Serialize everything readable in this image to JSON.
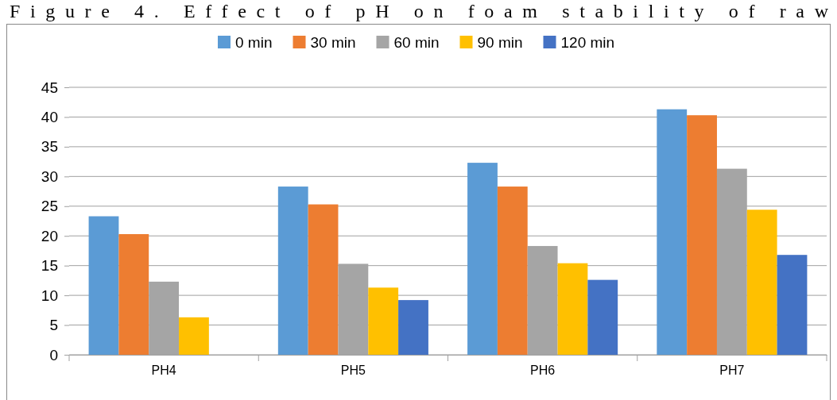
{
  "chart_data": {
    "type": "bar",
    "title": "Figure 4. Effect of pH on foam stability of raw",
    "categories": [
      "PH4",
      "PH5",
      "PH6",
      "PH7"
    ],
    "series": [
      {
        "name": "0 min",
        "color": "#5b9bd5",
        "values": [
          23.3,
          28.3,
          32.3,
          41.3
        ]
      },
      {
        "name": "30 min",
        "color": "#ed7d31",
        "values": [
          20.3,
          25.3,
          28.3,
          40.3
        ]
      },
      {
        "name": "60 min",
        "color": "#a5a5a5",
        "values": [
          12.3,
          15.3,
          18.3,
          31.3
        ]
      },
      {
        "name": "90 min",
        "color": "#ffc000",
        "values": [
          6.3,
          11.3,
          15.4,
          24.4
        ]
      },
      {
        "name": "120 min",
        "color": "#4472c4",
        "values": [
          null,
          9.2,
          12.6,
          16.8
        ]
      }
    ],
    "ylim": [
      0,
      45
    ],
    "yticks": [
      0,
      5,
      10,
      15,
      20,
      25,
      30,
      35,
      40,
      45
    ],
    "grid": "y",
    "legend": "top"
  }
}
